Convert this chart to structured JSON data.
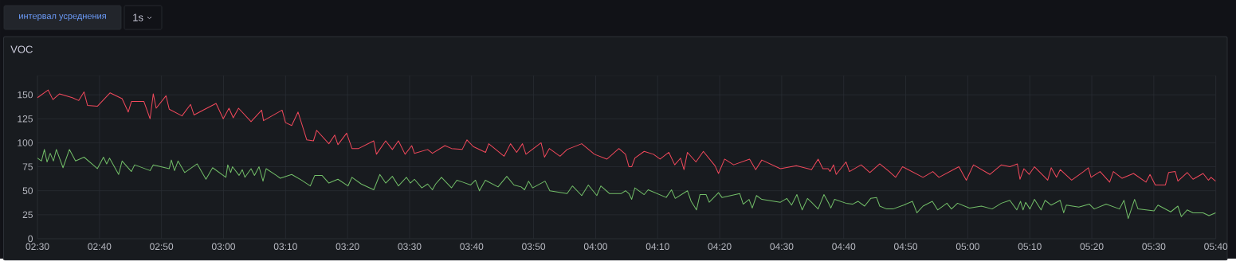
{
  "chart_data": {
    "type": "line",
    "title": "VOC",
    "annotations": [
      "интервал усреднения",
      "1s"
    ],
    "xlim": [
      2.5,
      5.6667
    ],
    "ylim": [
      0,
      170
    ],
    "xticks": [
      {
        "value": 2.5,
        "label": "02:30"
      },
      {
        "value": 2.6667,
        "label": "02:40"
      },
      {
        "value": 2.8333,
        "label": "02:50"
      },
      {
        "value": 3,
        "label": "03:00"
      },
      {
        "value": 3.1667,
        "label": "03:10"
      },
      {
        "value": 3.3333,
        "label": "03:20"
      },
      {
        "value": 3.5,
        "label": "03:30"
      },
      {
        "value": 3.6667,
        "label": "03:40"
      },
      {
        "value": 3.8333,
        "label": "03:50"
      },
      {
        "value": 4,
        "label": "04:00"
      },
      {
        "value": 4.1667,
        "label": "04:10"
      },
      {
        "value": 4.3333,
        "label": "04:20"
      },
      {
        "value": 4.5,
        "label": "04:30"
      },
      {
        "value": 4.6667,
        "label": "04:40"
      },
      {
        "value": 4.8333,
        "label": "04:50"
      },
      {
        "value": 5,
        "label": "05:00"
      },
      {
        "value": 5.1667,
        "label": "05:10"
      },
      {
        "value": 5.3333,
        "label": "05:20"
      },
      {
        "value": 5.5,
        "label": "05:30"
      },
      {
        "value": 5.6667,
        "label": "05:40"
      }
    ],
    "yticks": [
      0,
      25,
      50,
      75,
      100,
      125,
      150
    ],
    "grid": true,
    "series": [
      {
        "color": "#f2495c",
        "x": [
          2.5,
          2.5286,
          2.5415,
          2.5594,
          2.5937,
          2.6109,
          2.6252,
          2.6345,
          2.6609,
          2.6953,
          2.7275,
          2.7439,
          2.7525,
          2.7861,
          2.8026,
          2.8112,
          2.819,
          2.8455,
          2.8541,
          2.8884,
          2.9113,
          2.9206,
          2.98,
          2.9993,
          3.0147,
          3.0261,
          3.0404,
          3.074,
          3.1025,
          3.1075,
          3.1575,
          3.1667,
          3.1832,
          3.2003,
          3.2238,
          3.2417,
          3.2503,
          3.2831,
          3.2988,
          3.3074,
          3.3309,
          3.3452,
          3.363,
          3.4037,
          3.4109,
          3.4358,
          3.4537,
          3.4701,
          3.4879,
          3.5058,
          3.513,
          3.5486,
          3.5614,
          3.595,
          3.6128,
          3.6414,
          3.6542,
          3.6713,
          3.7042,
          3.7127,
          3.7541,
          3.7713,
          3.7877,
          3.8034,
          3.8127,
          3.8534,
          3.8626,
          3.8755,
          3.9043,
          3.9233,
          3.9626,
          3.9968,
          4.0304,
          4.0625,
          4.0803,
          4.0896,
          4.0968,
          4.1054,
          4.1304,
          4.1554,
          4.1732,
          4.1968,
          4.2125,
          4.2282,
          4.2374,
          4.2467,
          4.2696,
          4.2895,
          4.3209,
          4.3302,
          4.3466,
          4.3709,
          4.4137,
          4.4301,
          4.4466,
          4.4965,
          4.5394,
          4.5801,
          4.5979,
          4.6107,
          4.625,
          4.63,
          4.6393,
          4.6464,
          4.6728,
          4.6821,
          4.7135,
          4.737,
          4.7635,
          4.7892,
          4.8063,
          4.8248,
          4.8798,
          4.9062,
          4.9226,
          4.9762,
          4.9961,
          5.0154,
          5.0597,
          5.0904,
          5.1132,
          5.1332,
          5.1403,
          5.151,
          5.165,
          5.1793,
          5.2149,
          5.2242,
          5.2385,
          5.2485,
          5.2792,
          5.3113,
          5.3242,
          5.3313,
          5.3556,
          5.3813,
          5.3913,
          5.4148,
          5.4455,
          5.479,
          5.4897,
          5.504,
          5.5312,
          5.5397,
          5.5576,
          5.5647,
          5.5897,
          5.6054,
          5.6325,
          5.6468,
          5.6539,
          5.666
        ],
        "values": [
          147,
          155,
          145,
          151,
          147,
          144,
          153,
          139,
          138,
          152,
          146,
          132,
          143,
          143,
          125,
          151,
          136,
          149,
          135,
          128,
          140,
          129,
          141,
          125,
          136,
          126,
          136,
          122,
          134,
          123,
          134,
          121,
          118,
          132,
          103,
          102,
          113,
          99,
          108,
          98,
          110,
          94,
          94,
          102,
          88,
          102,
          93,
          102,
          88,
          97,
          89,
          93,
          89,
          97,
          94,
          93,
          103,
          96,
          90,
          99,
          86,
          99,
          90,
          99,
          88,
          100,
          85,
          94,
          86,
          93,
          99,
          88,
          83,
          94,
          88,
          75,
          75,
          84,
          91,
          88,
          83,
          90,
          77,
          84,
          72,
          90,
          80,
          91,
          76,
          68,
          83,
          77,
          83,
          72,
          82,
          73,
          76,
          72,
          83,
          73,
          73,
          70,
          77,
          67,
          80,
          70,
          77,
          69,
          78,
          70,
          64,
          75,
          64,
          70,
          64,
          75,
          61,
          77,
          67,
          77,
          75,
          78,
          62,
          73,
          67,
          75,
          61,
          74,
          64,
          72,
          61,
          70,
          74,
          64,
          70,
          59,
          70,
          63,
          68,
          59,
          67,
          56,
          56,
          69,
          70,
          60,
          69,
          62,
          68,
          61,
          64,
          60
        ]
      },
      {
        "color": "#73bf69",
        "x": [
          2.5,
          2.5107,
          2.5186,
          2.5258,
          2.5343,
          2.5429,
          2.5508,
          2.5687,
          2.5858,
          2.6023,
          2.6252,
          2.6524,
          2.6609,
          2.6774,
          2.686,
          2.6938,
          2.7182,
          2.7275,
          2.7525,
          2.7611,
          2.8026,
          2.8112,
          2.8541,
          2.8598,
          2.8684,
          2.8777,
          2.8956,
          2.9292,
          2.9528,
          2.9707,
          3.0064,
          3.0114,
          3.0193,
          3.024,
          3.0418,
          3.0504,
          3.0575,
          3.074,
          3.0832,
          3.0954,
          3.1061,
          3.1146,
          3.1418,
          3.1525,
          3.1832,
          3.2096,
          3.2331,
          3.2453,
          3.2646,
          3.2831,
          3.3074,
          3.3345,
          3.3452,
          3.3702,
          3.4037,
          3.4201,
          3.4358,
          3.4537,
          3.4701,
          3.4915,
          3.5022,
          3.513,
          3.5329,
          3.5486,
          3.5614,
          3.57,
          3.5857,
          3.6128,
          3.6271,
          3.6428,
          3.6642,
          3.6771,
          3.6878,
          3.7035,
          3.7377,
          3.7613,
          3.7805,
          3.7998,
          3.8091,
          3.8198,
          3.8305,
          3.8641,
          3.8769,
          3.9233,
          3.9376,
          3.9626,
          3.9804,
          4.0032,
          4.0139,
          4.0375,
          4.0682,
          4.0803,
          4.0896,
          4.0968,
          4.1054,
          4.1304,
          4.1411,
          4.1896,
          4.2039,
          4.2139,
          4.2467,
          4.2567,
          4.271,
          4.2803,
          4.2967,
          4.3052,
          4.3302,
          4.3395,
          4.3873,
          4.3966,
          4.4123,
          4.4209,
          4.4323,
          4.4466,
          4.4965,
          4.5137,
          4.5265,
          4.5408,
          4.5551,
          4.5693,
          4.5801,
          4.5979,
          4.6136,
          4.625,
          4.6321,
          4.6421,
          4.6728,
          4.6907,
          4.705,
          4.7228,
          4.7392,
          4.7549,
          4.7635,
          4.782,
          4.7991,
          4.8277,
          4.8513,
          4.8634,
          4.8798,
          4.9048,
          4.9191,
          4.944,
          4.9562,
          4.9726,
          5.0047,
          5.0368,
          5.0654,
          5.0904,
          5.1132,
          5.1318,
          5.1418,
          5.1486,
          5.1557,
          5.1671,
          5.1793,
          5.1971,
          5.2078,
          5.2242,
          5.2485,
          5.2578,
          5.2649,
          5.2985,
          5.327,
          5.3399,
          5.372,
          5.4077,
          5.4198,
          5.4312,
          5.4484,
          5.4576,
          5.5005,
          5.5112,
          5.5454,
          5.5647,
          5.574,
          5.5897,
          5.6054,
          5.6325,
          5.6482,
          5.666
        ],
        "values": [
          84,
          81,
          93,
          80,
          89,
          81,
          93,
          74,
          93,
          81,
          85,
          76,
          73,
          85,
          78,
          84,
          67,
          81,
          70,
          77,
          71,
          77,
          73,
          82,
          71,
          81,
          69,
          78,
          62,
          74,
          64,
          77,
          69,
          75,
          66,
          72,
          64,
          73,
          66,
          75,
          60,
          73,
          66,
          63,
          67,
          61,
          55,
          66,
          66,
          58,
          62,
          55,
          64,
          57,
          51,
          67,
          58,
          65,
          55,
          64,
          58,
          62,
          53,
          57,
          51,
          57,
          64,
          53,
          61,
          59,
          56,
          61,
          50,
          61,
          54,
          65,
          56,
          54,
          51,
          60,
          53,
          60,
          50,
          47,
          55,
          45,
          56,
          45,
          55,
          47,
          47,
          50,
          47,
          41,
          53,
          46,
          51,
          43,
          51,
          42,
          50,
          39,
          30,
          46,
          46,
          38,
          48,
          43,
          47,
          36,
          41,
          32,
          45,
          41,
          38,
          42,
          35,
          46,
          30,
          42,
          38,
          31,
          46,
          38,
          32,
          41,
          37,
          36,
          39,
          34,
          42,
          43,
          34,
          31,
          31,
          35,
          39,
          27,
          34,
          39,
          30,
          37,
          31,
          37,
          32,
          34,
          31,
          37,
          40,
          30,
          39,
          30,
          38,
          31,
          41,
          30,
          40,
          35,
          40,
          27,
          35,
          33,
          36,
          31,
          36,
          31,
          40,
          21,
          41,
          31,
          29,
          35,
          28,
          34,
          23,
          30,
          27,
          27,
          24,
          27
        ]
      }
    ]
  }
}
